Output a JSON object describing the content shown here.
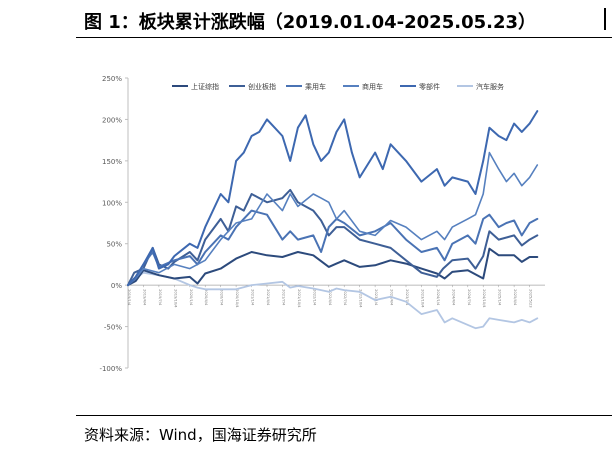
{
  "header": {
    "title": "图 1：板块累计涨跌幅（2019.01.04-2025.05.23）"
  },
  "footer": {
    "source": "资料来源：Wind，国海证券研究所"
  },
  "chart_data": {
    "type": "line",
    "title": "图 1：板块累计涨跌幅（2019.01.04-2025.05.23）",
    "xlabel": "",
    "ylabel": "",
    "ylim": [
      -100,
      250
    ],
    "yticks": [
      -100,
      -50,
      0,
      50,
      100,
      150,
      200,
      250
    ],
    "ytick_labels": [
      "-100%",
      "-50%",
      "0%",
      "50%",
      "100%",
      "150%",
      "200%",
      "250%"
    ],
    "x_range": [
      0,
      27
    ],
    "x_ticks": [
      0,
      1,
      2,
      3,
      4,
      5,
      6,
      7,
      8,
      9,
      10,
      11,
      12,
      13,
      14,
      15,
      16,
      17,
      18,
      19,
      20,
      21,
      22,
      23,
      24,
      25,
      26
    ],
    "x_tick_labels": [
      "2019/1/4",
      "2019/4/4",
      "2019/7/4",
      "2019/10/4",
      "2020/1/4",
      "2020/4/4",
      "2020/7/4",
      "2020/10/4",
      "2021/1/4",
      "2021/4/4",
      "2021/7/4",
      "2021/10/4",
      "2022/1/4",
      "2022/4/4",
      "2022/7/4",
      "2022/10/4",
      "2023/1/4",
      "2023/4/4",
      "2023/7/4",
      "2023/10/4",
      "2024/1/4",
      "2024/4/4",
      "2024/7/4",
      "2024/10/4",
      "2025/1/4",
      "2025/4/4",
      "2025/5/23"
    ],
    "legend_position": "top",
    "series": [
      {
        "name": "上证综指",
        "color": "#2c4a7c",
        "width": 2.0,
        "points": [
          [
            0,
            0
          ],
          [
            0.5,
            5
          ],
          [
            1,
            18
          ],
          [
            2,
            12
          ],
          [
            3,
            8
          ],
          [
            4,
            10
          ],
          [
            4.5,
            2
          ],
          [
            5,
            14
          ],
          [
            6,
            20
          ],
          [
            7,
            32
          ],
          [
            8,
            40
          ],
          [
            9,
            36
          ],
          [
            10,
            34
          ],
          [
            11,
            40
          ],
          [
            12,
            36
          ],
          [
            13,
            22
          ],
          [
            13.5,
            26
          ],
          [
            14,
            30
          ],
          [
            15,
            22
          ],
          [
            16,
            24
          ],
          [
            17,
            30
          ],
          [
            18,
            26
          ],
          [
            19,
            20
          ],
          [
            20,
            14
          ],
          [
            20.5,
            8
          ],
          [
            21,
            16
          ],
          [
            22,
            18
          ],
          [
            23,
            8
          ],
          [
            23.4,
            44
          ],
          [
            24,
            36
          ],
          [
            25,
            36
          ],
          [
            25.5,
            28
          ],
          [
            26,
            34
          ],
          [
            26.5,
            34
          ]
        ]
      },
      {
        "name": "创业板指",
        "color": "#3e5f96",
        "width": 2.0,
        "points": [
          [
            0,
            0
          ],
          [
            0.4,
            15
          ],
          [
            1,
            20
          ],
          [
            1.6,
            45
          ],
          [
            2,
            25
          ],
          [
            2.6,
            20
          ],
          [
            3,
            28
          ],
          [
            4,
            40
          ],
          [
            4.5,
            30
          ],
          [
            5,
            55
          ],
          [
            6,
            80
          ],
          [
            6.5,
            65
          ],
          [
            7,
            95
          ],
          [
            7.5,
            90
          ],
          [
            8,
            110
          ],
          [
            9,
            100
          ],
          [
            10,
            105
          ],
          [
            10.5,
            115
          ],
          [
            11,
            100
          ],
          [
            12,
            90
          ],
          [
            12.5,
            78
          ],
          [
            13,
            60
          ],
          [
            13.5,
            70
          ],
          [
            14,
            70
          ],
          [
            15,
            55
          ],
          [
            16,
            50
          ],
          [
            17,
            45
          ],
          [
            18,
            30
          ],
          [
            19,
            15
          ],
          [
            20,
            10
          ],
          [
            20.4,
            20
          ],
          [
            21,
            30
          ],
          [
            22,
            32
          ],
          [
            22.5,
            20
          ],
          [
            23,
            35
          ],
          [
            23.4,
            65
          ],
          [
            24,
            55
          ],
          [
            25,
            60
          ],
          [
            25.5,
            48
          ],
          [
            26,
            55
          ],
          [
            26.5,
            60
          ]
        ]
      },
      {
        "name": "乘用车",
        "color": "#4a73b4",
        "width": 2.0,
        "points": [
          [
            0,
            0
          ],
          [
            0.5,
            10
          ],
          [
            1,
            25
          ],
          [
            1.6,
            40
          ],
          [
            2,
            22
          ],
          [
            3,
            30
          ],
          [
            4,
            35
          ],
          [
            4.5,
            25
          ],
          [
            5,
            40
          ],
          [
            6,
            60
          ],
          [
            6.5,
            55
          ],
          [
            7,
            70
          ],
          [
            8,
            90
          ],
          [
            9,
            85
          ],
          [
            10,
            55
          ],
          [
            10.5,
            65
          ],
          [
            11,
            55
          ],
          [
            12,
            60
          ],
          [
            12.5,
            40
          ],
          [
            13,
            70
          ],
          [
            13.5,
            80
          ],
          [
            14,
            75
          ],
          [
            15,
            60
          ],
          [
            16,
            65
          ],
          [
            17,
            75
          ],
          [
            18,
            55
          ],
          [
            19,
            40
          ],
          [
            20,
            45
          ],
          [
            20.5,
            30
          ],
          [
            21,
            50
          ],
          [
            22,
            60
          ],
          [
            22.5,
            50
          ],
          [
            23,
            80
          ],
          [
            23.4,
            85
          ],
          [
            24,
            70
          ],
          [
            24.5,
            75
          ],
          [
            25,
            78
          ],
          [
            25.5,
            60
          ],
          [
            26,
            75
          ],
          [
            26.5,
            80
          ]
        ]
      },
      {
        "name": "商用车",
        "color": "#5680bf",
        "width": 1.6,
        "points": [
          [
            0,
            0
          ],
          [
            0.5,
            8
          ],
          [
            1,
            20
          ],
          [
            2,
            15
          ],
          [
            3,
            25
          ],
          [
            4,
            20
          ],
          [
            4.5,
            25
          ],
          [
            5,
            30
          ],
          [
            6,
            55
          ],
          [
            7,
            75
          ],
          [
            8,
            80
          ],
          [
            9,
            110
          ],
          [
            10,
            90
          ],
          [
            10.5,
            110
          ],
          [
            11,
            95
          ],
          [
            12,
            110
          ],
          [
            12.5,
            105
          ],
          [
            13,
            100
          ],
          [
            13.5,
            80
          ],
          [
            14,
            90
          ],
          [
            15,
            65
          ],
          [
            16,
            60
          ],
          [
            17,
            78
          ],
          [
            18,
            70
          ],
          [
            19,
            55
          ],
          [
            20,
            65
          ],
          [
            20.5,
            55
          ],
          [
            21,
            70
          ],
          [
            22,
            80
          ],
          [
            22.5,
            85
          ],
          [
            23,
            110
          ],
          [
            23.4,
            160
          ],
          [
            24,
            140
          ],
          [
            24.5,
            125
          ],
          [
            25,
            135
          ],
          [
            25.5,
            120
          ],
          [
            26,
            130
          ],
          [
            26.5,
            145
          ]
        ]
      },
      {
        "name": "零部件",
        "color": "#3d68b0",
        "width": 2.0,
        "points": [
          [
            0,
            0
          ],
          [
            0.5,
            10
          ],
          [
            1,
            25
          ],
          [
            1.6,
            45
          ],
          [
            2,
            20
          ],
          [
            2.6,
            25
          ],
          [
            3,
            35
          ],
          [
            4,
            50
          ],
          [
            4.5,
            45
          ],
          [
            5,
            70
          ],
          [
            6,
            110
          ],
          [
            6.5,
            100
          ],
          [
            7,
            150
          ],
          [
            7.5,
            160
          ],
          [
            8,
            180
          ],
          [
            8.5,
            185
          ],
          [
            9,
            200
          ],
          [
            10,
            180
          ],
          [
            10.5,
            150
          ],
          [
            11,
            190
          ],
          [
            11.5,
            205
          ],
          [
            12,
            170
          ],
          [
            12.5,
            150
          ],
          [
            13,
            160
          ],
          [
            13.5,
            185
          ],
          [
            14,
            200
          ],
          [
            14.5,
            160
          ],
          [
            15,
            130
          ],
          [
            16,
            160
          ],
          [
            16.5,
            140
          ],
          [
            17,
            170
          ],
          [
            18,
            150
          ],
          [
            19,
            125
          ],
          [
            20,
            140
          ],
          [
            20.5,
            120
          ],
          [
            21,
            130
          ],
          [
            22,
            125
          ],
          [
            22.5,
            110
          ],
          [
            23,
            150
          ],
          [
            23.4,
            190
          ],
          [
            24,
            180
          ],
          [
            24.5,
            175
          ],
          [
            25,
            195
          ],
          [
            25.5,
            185
          ],
          [
            26,
            195
          ],
          [
            26.5,
            210
          ]
        ]
      },
      {
        "name": "汽车服务",
        "color": "#b3c6e3",
        "width": 1.8,
        "points": [
          [
            0,
            0
          ],
          [
            0.5,
            8
          ],
          [
            1,
            15
          ],
          [
            2,
            12
          ],
          [
            3,
            8
          ],
          [
            4,
            0
          ],
          [
            4.5,
            -3
          ],
          [
            5,
            -5
          ],
          [
            6,
            -5
          ],
          [
            7,
            -5
          ],
          [
            8,
            0
          ],
          [
            9,
            2
          ],
          [
            10,
            4
          ],
          [
            10.5,
            -3
          ],
          [
            11,
            -1
          ],
          [
            12,
            -4
          ],
          [
            12.5,
            -6
          ],
          [
            13,
            -8
          ],
          [
            13.5,
            -4
          ],
          [
            14,
            -6
          ],
          [
            15,
            -8
          ],
          [
            16,
            -18
          ],
          [
            17,
            -14
          ],
          [
            18,
            -20
          ],
          [
            19,
            -35
          ],
          [
            20,
            -30
          ],
          [
            20.5,
            -45
          ],
          [
            21,
            -40
          ],
          [
            22,
            -48
          ],
          [
            22.5,
            -52
          ],
          [
            23,
            -50
          ],
          [
            23.4,
            -40
          ],
          [
            24,
            -42
          ],
          [
            25,
            -45
          ],
          [
            25.5,
            -42
          ],
          [
            26,
            -45
          ],
          [
            26.5,
            -40
          ]
        ]
      }
    ]
  }
}
